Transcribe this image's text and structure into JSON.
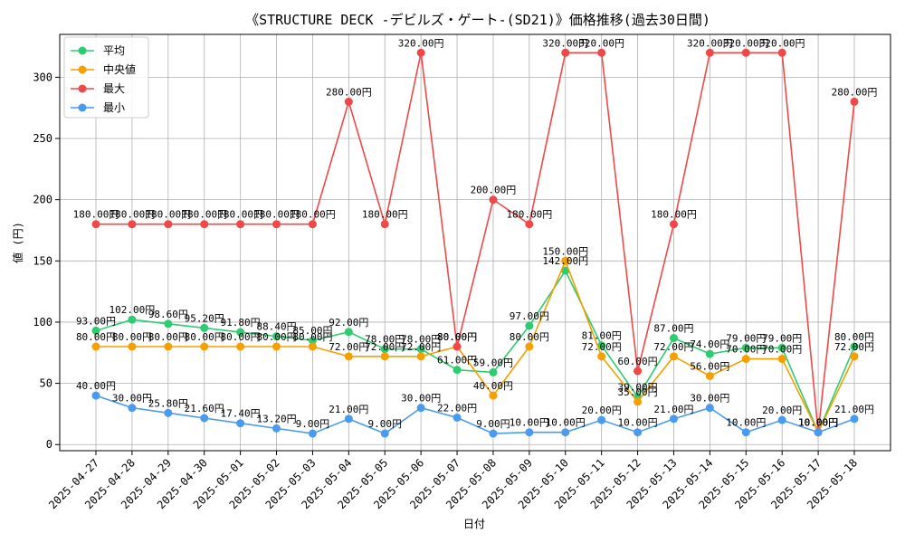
{
  "chart_data": {
    "type": "line",
    "title": "《STRUCTURE DECK -デビルズ・ゲート-(SD21)》価格推移(過去30日間)",
    "xlabel": "日付",
    "ylabel": "値 (円)",
    "ylim": [
      -5,
      335
    ],
    "yticks": [
      0,
      50,
      100,
      150,
      200,
      250,
      300
    ],
    "grid": true,
    "legend_position": "top-left",
    "categories": [
      "2025-04-27",
      "2025-04-28",
      "2025-04-29",
      "2025-04-30",
      "2025-05-01",
      "2025-05-02",
      "2025-05-03",
      "2025-05-04",
      "2025-05-05",
      "2025-05-06",
      "2025-05-07",
      "2025-05-08",
      "2025-05-09",
      "2025-05-10",
      "2025-05-11",
      "2025-05-12",
      "2025-05-13",
      "2025-05-14",
      "2025-05-15",
      "2025-05-16",
      "2025-05-17",
      "2025-05-18"
    ],
    "series": [
      {
        "name": "平均",
        "color": "#2ecc71",
        "values": [
          93.0,
          102.0,
          98.6,
          95.2,
          91.8,
          88.4,
          85.0,
          92.0,
          78.0,
          78.0,
          61.0,
          59.0,
          97.0,
          142.0,
          81.0,
          39.0,
          87.0,
          74.0,
          79.0,
          79.0,
          10.0,
          80.0
        ],
        "labels": [
          "93.00円",
          "102.00円",
          "98.60円",
          "95.20円",
          "91.80円",
          "88.40円",
          "85.00円",
          "92.00円",
          "78.00円",
          "78.00円",
          "61.00円",
          "59.00円",
          "97.00円",
          "142.00円",
          "81.00円",
          "39.00円",
          "87.00円",
          "74.00円",
          "79.00円",
          "79.00円",
          "10.00円",
          "80.00円"
        ]
      },
      {
        "name": "中央値",
        "color": "#f5a000",
        "values": [
          80,
          80,
          80,
          80,
          80,
          80,
          80,
          72,
          72,
          72,
          80,
          40,
          80,
          150,
          72,
          35,
          72,
          56,
          70,
          70,
          10,
          72
        ],
        "labels": [
          "80.00円",
          "80.00円",
          "80.00円",
          "80.00円",
          "80.00円",
          "80.00円",
          "80.00円",
          "72.00円",
          "72.00円",
          "72.00円",
          "80.00円",
          "40.00円",
          "80.00円",
          "150.00円",
          "72.00円",
          "35.00円",
          "72.00円",
          "56.00円",
          "70.00円",
          "70.00円",
          "10.00円",
          "72.00円"
        ]
      },
      {
        "name": "最大",
        "color": "#f04848",
        "values": [
          180,
          180,
          180,
          180,
          180,
          180,
          180,
          280,
          180,
          320,
          80,
          200,
          180,
          320,
          320,
          60,
          180,
          320,
          320,
          320,
          10,
          280
        ],
        "labels": [
          "180.00円",
          "180.00円",
          "180.00円",
          "180.00円",
          "180.00円",
          "180.00円",
          "180.00円",
          "280.00円",
          "180.00円",
          "320.00円",
          "80.00円",
          "200.00円",
          "180.00円",
          "320.00円",
          "320.00円",
          "60.00円",
          "180.00円",
          "320.00円",
          "320.00円",
          "320.00円",
          "10.00円",
          "280.00円"
        ]
      },
      {
        "name": "最小",
        "color": "#4a9af0",
        "values": [
          40,
          30,
          25.8,
          21.6,
          17.4,
          13.2,
          9,
          21,
          9,
          30,
          22,
          9,
          10,
          10,
          20,
          10,
          21,
          30,
          10,
          20,
          10,
          21
        ],
        "labels": [
          "40.00円",
          "30.00円",
          "25.80円",
          "21.60円",
          "17.40円",
          "13.20円",
          "9.00円",
          "21.00円",
          "9.00円",
          "30.00円",
          "22.00円",
          "9.00円",
          "10.00円",
          "10.00円",
          "20.00円",
          "10.00円",
          "21.00円",
          "30.00円",
          "10.00円",
          "20.00円",
          "10.00円",
          "21.00円"
        ]
      }
    ]
  }
}
